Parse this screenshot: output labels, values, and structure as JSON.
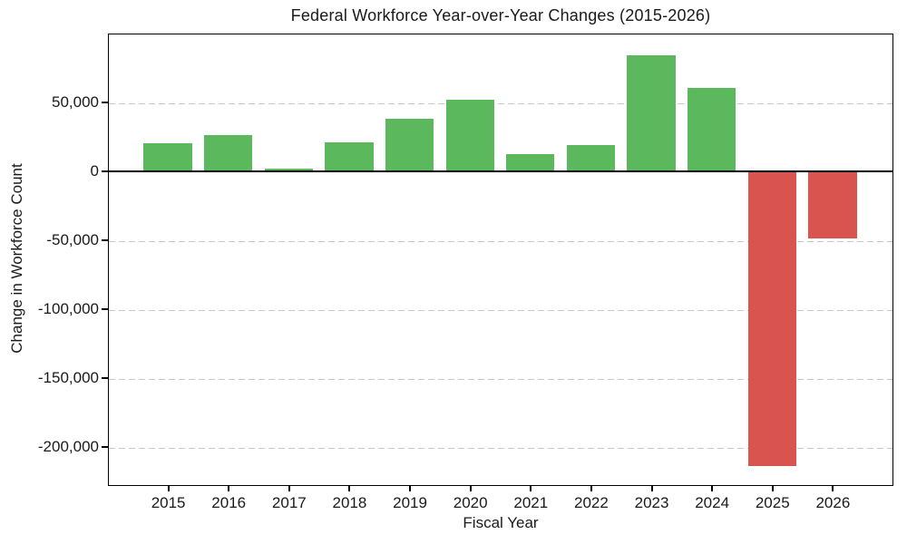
{
  "chart_data": {
    "type": "bar",
    "title": "Federal Workforce Year-over-Year Changes (2015-2026)",
    "xlabel": "Fiscal Year",
    "ylabel": "Change in Workforce Count",
    "categories": [
      "2015",
      "2016",
      "2017",
      "2018",
      "2019",
      "2020",
      "2021",
      "2022",
      "2023",
      "2024",
      "2025",
      "2026"
    ],
    "values": [
      20000,
      26000,
      1500,
      21000,
      38000,
      52000,
      12000,
      19000,
      84000,
      60000,
      -214000,
      -49000
    ],
    "positive_color": "#5cb85c",
    "negative_color": "#d9534f",
    "ylim": [
      -228000,
      100000
    ],
    "yticks": [
      50000,
      0,
      -50000,
      -100000,
      -150000,
      -200000
    ],
    "ytick_labels": [
      "50,000",
      "0",
      "-50,000",
      "-100,000",
      "-150,000",
      "-200,000"
    ],
    "grid": "horizontal dashed gray at yticks, solid black line at zero",
    "gridline_color": "#c9c9c9",
    "legend": "none"
  }
}
